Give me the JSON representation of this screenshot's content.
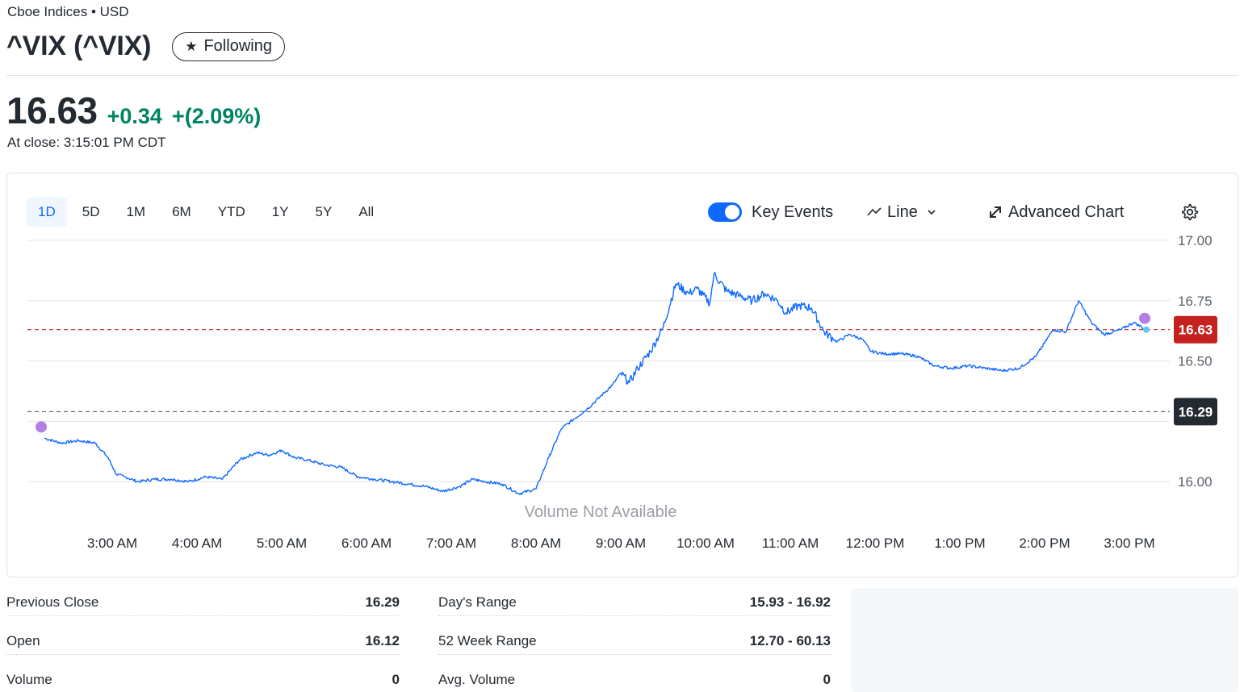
{
  "header": {
    "exchange": "Cboe Indices • USD",
    "title": "^VIX (^VIX)",
    "follow_label": "Following"
  },
  "quote": {
    "price": "16.63",
    "change": "+0.34",
    "change_pct": "+(2.09%)",
    "close_time": "At close: 3:15:01 PM CDT",
    "positive_color": "#008463"
  },
  "chart_controls": {
    "ranges": [
      "1D",
      "5D",
      "1M",
      "6M",
      "YTD",
      "1Y",
      "5Y",
      "All"
    ],
    "active_range": "1D",
    "key_events_label": "Key Events",
    "key_events_on": true,
    "chart_type_label": "Line",
    "advanced_label": "Advanced Chart",
    "settings_icon": "gear-icon"
  },
  "chart_data": {
    "type": "line",
    "title": "",
    "xlabel": "",
    "ylabel": "",
    "ylim": [
      15.93,
      17.0
    ],
    "y_ticks": [
      "17.00",
      "16.75",
      "16.50",
      "16.00"
    ],
    "x_ticks": [
      "3:00 AM",
      "4:00 AM",
      "5:00 AM",
      "6:00 AM",
      "7:00 AM",
      "8:00 AM",
      "9:00 AM",
      "10:00 AM",
      "11:00 AM",
      "12:00 PM",
      "1:00 PM",
      "2:00 PM",
      "3:00 PM"
    ],
    "x_tick_hours": [
      3,
      4,
      5,
      6,
      7,
      8,
      9,
      10,
      11,
      12,
      13,
      14,
      15
    ],
    "current_price": {
      "value": 16.63,
      "label": "16.63",
      "color": "#c5221f"
    },
    "previous_close": {
      "value": 16.29,
      "label": "16.29",
      "color": "#232a31"
    },
    "volume_note": "Volume Not Available",
    "line_color": "#0f69ff",
    "key_event_color": "#b37fe6",
    "series": [
      {
        "hours": [
          2.2,
          2.4,
          2.6,
          2.8,
          2.95,
          3.05,
          3.15,
          3.3,
          3.5,
          3.7,
          3.9,
          4.1,
          4.3,
          4.5,
          4.7,
          4.85,
          5.0,
          5.15,
          5.3,
          5.5,
          5.7,
          5.9,
          6.1,
          6.3,
          6.5,
          6.7,
          6.9,
          7.1,
          7.25,
          7.4,
          7.6,
          7.8,
          8.0,
          8.15,
          8.3,
          8.45,
          8.6,
          8.75,
          8.9,
          9.0,
          9.1,
          9.2,
          9.35,
          9.5,
          9.65,
          9.8,
          9.9,
          10.05,
          10.1,
          10.25,
          10.4,
          10.55,
          10.7,
          10.85,
          10.95,
          11.1,
          11.25,
          11.4,
          11.55,
          11.7,
          11.85,
          11.95,
          12.1,
          12.3,
          12.5,
          12.7,
          12.9,
          13.1,
          13.3,
          13.5,
          13.7,
          13.9,
          14.1,
          14.25,
          14.4,
          14.55,
          14.7,
          14.9,
          15.05,
          15.2
        ],
        "values": [
          16.18,
          16.16,
          16.17,
          16.16,
          16.1,
          16.03,
          16.02,
          16.0,
          16.01,
          16.01,
          16.0,
          16.02,
          16.01,
          16.09,
          16.12,
          16.11,
          16.13,
          16.1,
          16.09,
          16.07,
          16.06,
          16.02,
          16.01,
          16.0,
          15.99,
          15.98,
          15.96,
          15.98,
          16.01,
          16.0,
          15.99,
          15.95,
          15.97,
          16.1,
          16.22,
          16.26,
          16.3,
          16.35,
          16.4,
          16.45,
          16.41,
          16.47,
          16.54,
          16.64,
          16.82,
          16.78,
          16.8,
          16.74,
          16.86,
          16.79,
          16.77,
          16.75,
          16.78,
          16.75,
          16.7,
          16.73,
          16.72,
          16.62,
          16.58,
          16.61,
          16.59,
          16.54,
          16.53,
          16.53,
          16.52,
          16.48,
          16.47,
          16.48,
          16.47,
          16.46,
          16.47,
          16.52,
          16.63,
          16.62,
          16.75,
          16.66,
          16.61,
          16.63,
          16.66,
          16.63
        ]
      }
    ]
  },
  "stats": {
    "left": [
      {
        "label": "Previous Close",
        "value": "16.29"
      },
      {
        "label": "Open",
        "value": "16.12"
      },
      {
        "label": "Volume",
        "value": "0"
      }
    ],
    "right": [
      {
        "label": "Day's Range",
        "value": "15.93 - 16.92"
      },
      {
        "label": "52 Week Range",
        "value": "12.70 - 60.13"
      },
      {
        "label": "Avg. Volume",
        "value": "0"
      }
    ]
  }
}
